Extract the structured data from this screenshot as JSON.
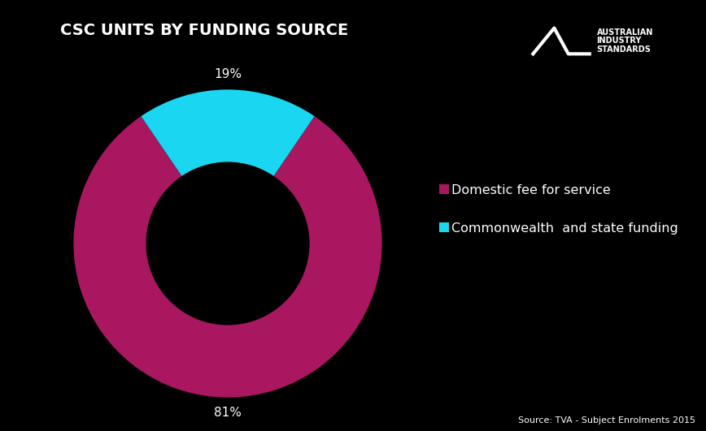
{
  "chart_data": {
    "type": "pie",
    "title": "CSC UNITS BY FUNDING SOURCE",
    "categories": [
      "Domestic fee for service",
      "Commonwealth  and state funding"
    ],
    "values": [
      81,
      19
    ],
    "value_labels": [
      "81%",
      "19%"
    ],
    "colors": [
      "#a8175f",
      "#1ad6f0"
    ],
    "data_labels": true,
    "legend": "center left",
    "logo_text": [
      "AUSTRALIAN",
      "INDUSTRY",
      "STANDARDS"
    ],
    "source": "Source: TVA - Subject Enrolments 2015"
  }
}
